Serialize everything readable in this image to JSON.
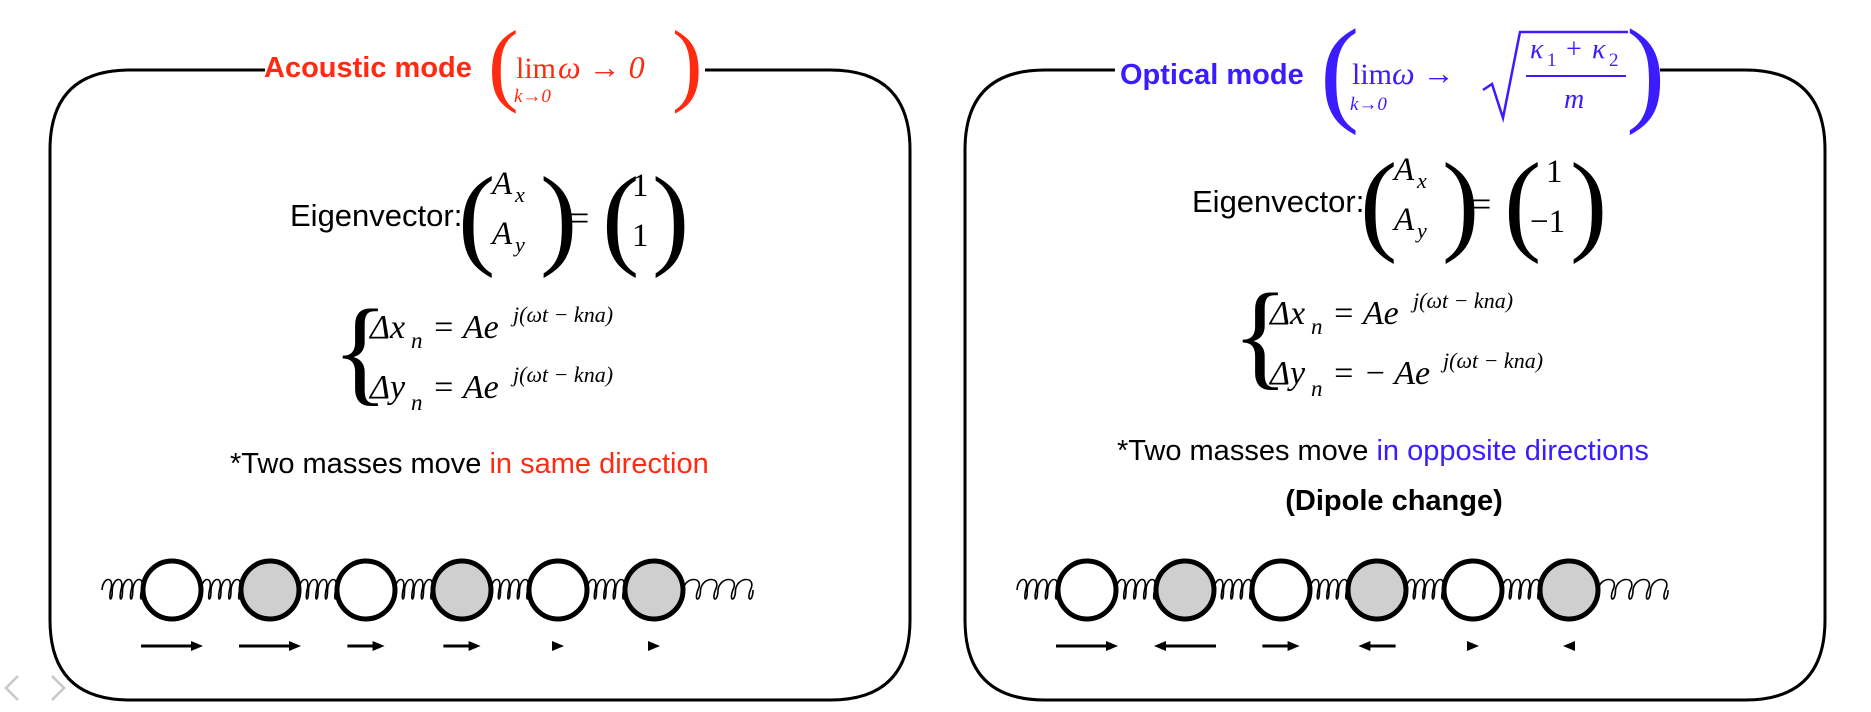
{
  "acoustic": {
    "title": "Acoustic mode",
    "title_color": "#ff2a12",
    "limit_word": "lim",
    "limit_sub": "k→0",
    "limit_body": "ω → 0",
    "eigen_label": "Eigenvector:",
    "vec_left": [
      "A",
      "A"
    ],
    "vec_left_sub": [
      "x",
      "y"
    ],
    "equals": "=",
    "vec_right": [
      "1",
      "1"
    ],
    "eq1_lhs": "Δx",
    "eq1_sub": "n",
    "eq1_rhs": "= Ae",
    "eq1_exp": "j(ωt − kna)",
    "eq2_lhs": "Δy",
    "eq2_sub": "n",
    "eq2_rhs": "= Ae",
    "eq2_exp": "j(ωt − kna)",
    "note_prefix": "*Two masses move ",
    "note_highlight": "in same direction",
    "highlight_color": "#ff2a12",
    "arrow_directions": [
      "right",
      "right",
      "right",
      "right",
      "right",
      "right"
    ],
    "arrow_magnitudes": [
      1.0,
      1.0,
      0.6,
      0.6,
      0.2,
      0.2
    ]
  },
  "optical": {
    "title": "Optical mode",
    "title_color": "#3b1cff",
    "limit_word": "lim",
    "limit_sub": "k→0",
    "limit_body": "ω →",
    "sqrt_num": "κ",
    "sqrt_num_sub1": "1",
    "sqrt_plus": "+",
    "sqrt_num2": "κ",
    "sqrt_num_sub2": "2",
    "sqrt_den": "m",
    "eigen_label": "Eigenvector:",
    "vec_left": [
      "A",
      "A"
    ],
    "vec_left_sub": [
      "x",
      "y"
    ],
    "equals": "=",
    "vec_right": [
      "1",
      "−1"
    ],
    "eq1_lhs": "Δx",
    "eq1_sub": "n",
    "eq1_rhs": "= Ae",
    "eq1_exp": "j(ωt − kna)",
    "eq2_lhs": "Δy",
    "eq2_sub": "n",
    "eq2_rhs": "= − Ae",
    "eq2_exp": "j(ωt − kna)",
    "note_prefix": "*Two masses move ",
    "note_highlight": "in opposite directions",
    "highlight_color": "#3b1cff",
    "dipole": "(Dipole change)",
    "arrow_directions": [
      "right",
      "left",
      "right",
      "left",
      "right",
      "left"
    ],
    "arrow_magnitudes": [
      1.0,
      1.0,
      0.6,
      0.6,
      0.2,
      0.2
    ]
  },
  "nav": {
    "icons": [
      "chevron-left-icon",
      "chevron-right-icon"
    ]
  }
}
